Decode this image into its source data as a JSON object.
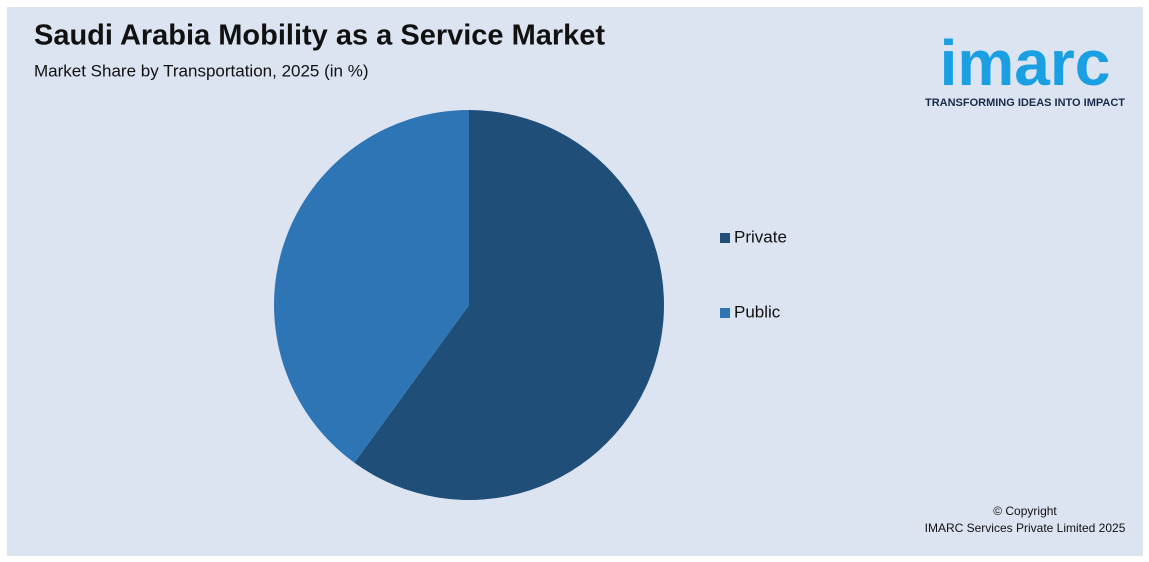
{
  "chart_data": {
    "type": "pie",
    "title": "Saudi Arabia Mobility as a Service Market",
    "subtitle": "Market Share by Transportation, 2025 (in %)",
    "categories": [
      "Private",
      "Public"
    ],
    "values": [
      60,
      40
    ],
    "colors": [
      "#1f4e79",
      "#2e75b6"
    ]
  },
  "logo": {
    "name": "imarc",
    "tagline": "TRANSFORMING IDEAS INTO IMPACT"
  },
  "footer": {
    "copyright": "© Copyright",
    "company": "IMARC Services Private Limited 2025"
  }
}
